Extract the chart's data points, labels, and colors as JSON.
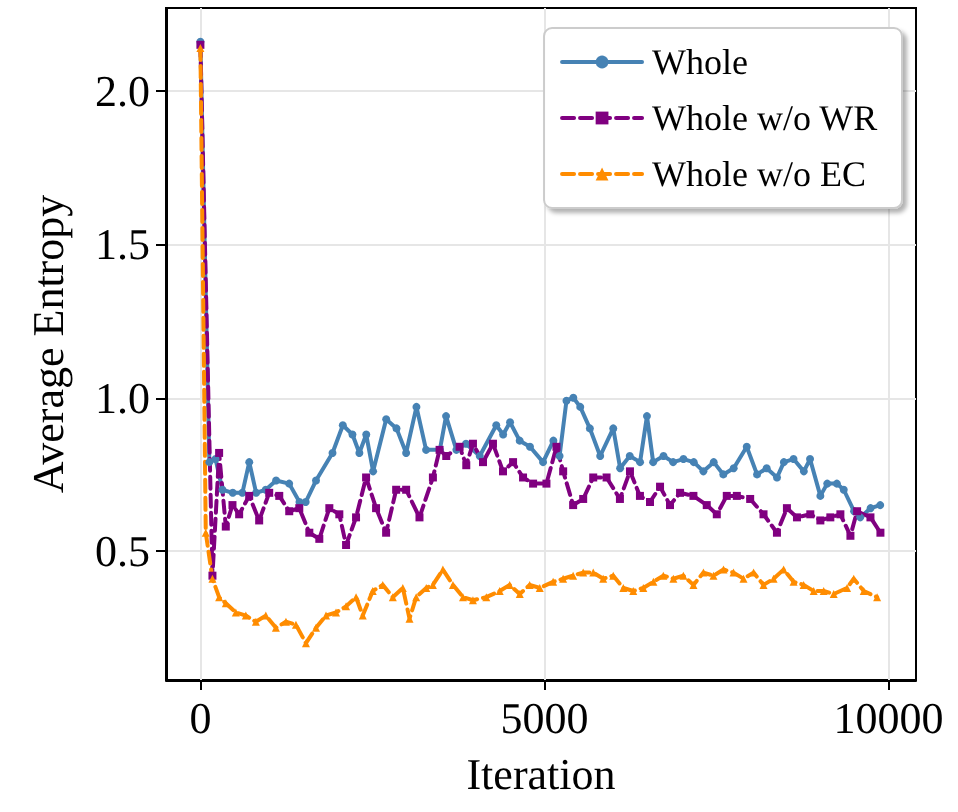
{
  "chart_data": {
    "type": "line",
    "xlabel": "Iteration",
    "ylabel": "Average Entropy",
    "xlim": [
      -500,
      10400
    ],
    "xticks": [
      0,
      5000,
      10000
    ],
    "ylim": [
      0.08,
      2.27
    ],
    "yticks": [
      {
        "value": 0.5,
        "label": "0.5"
      },
      {
        "value": 1.0,
        "label": "1.0"
      },
      {
        "value": 1.5,
        "label": "1.5"
      },
      {
        "value": 2.0,
        "label": "2.0"
      }
    ],
    "grid": true,
    "legend": "top right",
    "series": [
      {
        "name": "Whole",
        "color": "#4682b4",
        "marker": "circle",
        "line_style": "solid",
        "x": [
          0,
          130,
          220,
          320,
          470,
          610,
          710,
          810,
          950,
          1100,
          1290,
          1440,
          1530,
          1680,
          1920,
          2070,
          2210,
          2310,
          2410,
          2510,
          2700,
          2850,
          2990,
          3140,
          3280,
          3480,
          3570,
          3720,
          3860,
          4060,
          4300,
          4400,
          4500,
          4640,
          4790,
          4980,
          5130,
          5220,
          5320,
          5420,
          5520,
          5660,
          5810,
          6000,
          6100,
          6240,
          6390,
          6490,
          6580,
          6730,
          6870,
          7020,
          7170,
          7310,
          7460,
          7600,
          7750,
          7940,
          8090,
          8230,
          8380,
          8480,
          8620,
          8770,
          8860,
          9010,
          9110,
          9250,
          9350,
          9500,
          9590,
          9740,
          9880
        ],
        "values": [
          2.16,
          0.79,
          0.8,
          0.7,
          0.69,
          0.69,
          0.79,
          0.69,
          0.7,
          0.73,
          0.72,
          0.66,
          0.66,
          0.73,
          0.82,
          0.91,
          0.88,
          0.82,
          0.88,
          0.76,
          0.93,
          0.9,
          0.82,
          0.97,
          0.83,
          0.83,
          0.94,
          0.83,
          0.85,
          0.81,
          0.91,
          0.88,
          0.92,
          0.86,
          0.84,
          0.79,
          0.86,
          0.81,
          0.99,
          1.0,
          0.97,
          0.9,
          0.81,
          0.9,
          0.77,
          0.81,
          0.79,
          0.94,
          0.79,
          0.81,
          0.79,
          0.8,
          0.79,
          0.76,
          0.79,
          0.75,
          0.77,
          0.84,
          0.75,
          0.77,
          0.74,
          0.79,
          0.8,
          0.76,
          0.8,
          0.68,
          0.72,
          0.72,
          0.7,
          0.63,
          0.61,
          0.64,
          0.65
        ]
      },
      {
        "name": "Whole w/o WR",
        "color": "#800080",
        "marker": "square",
        "line_style": "dashed",
        "x": [
          0,
          175,
          272,
          369,
          466,
          563,
          709,
          854,
          1000,
          1146,
          1291,
          1437,
          1583,
          1728,
          1874,
          2019,
          2117,
          2262,
          2408,
          2553,
          2699,
          2845,
          2990,
          3184,
          3379,
          3476,
          3573,
          3767,
          3864,
          3961,
          4107,
          4252,
          4398,
          4544,
          4689,
          4835,
          5029,
          5175,
          5272,
          5417,
          5563,
          5709,
          5903,
          6097,
          6243,
          6388,
          6534,
          6680,
          6825,
          6971,
          7165,
          7359,
          7505,
          7650,
          7796,
          7990,
          8184,
          8379,
          8524,
          8670,
          8864,
          9010,
          9155,
          9301,
          9447,
          9544,
          9738,
          9883
        ],
        "values": [
          2.15,
          0.42,
          0.82,
          0.58,
          0.65,
          0.62,
          0.68,
          0.6,
          0.69,
          0.68,
          0.63,
          0.64,
          0.56,
          0.54,
          0.64,
          0.62,
          0.52,
          0.61,
          0.74,
          0.64,
          0.56,
          0.7,
          0.7,
          0.61,
          0.74,
          0.83,
          0.81,
          0.84,
          0.78,
          0.85,
          0.79,
          0.85,
          0.76,
          0.79,
          0.74,
          0.72,
          0.72,
          0.84,
          0.76,
          0.65,
          0.67,
          0.74,
          0.74,
          0.67,
          0.76,
          0.68,
          0.66,
          0.71,
          0.65,
          0.69,
          0.68,
          0.65,
          0.62,
          0.68,
          0.68,
          0.67,
          0.62,
          0.56,
          0.64,
          0.61,
          0.62,
          0.6,
          0.61,
          0.62,
          0.55,
          0.63,
          0.61,
          0.56
        ]
      },
      {
        "name": "Whole w/o EC",
        "color": "#ff8c00",
        "marker": "triangle",
        "line_style": "dashed",
        "x": [
          0,
          78,
          175,
          272,
          369,
          515,
          660,
          806,
          951,
          1097,
          1243,
          1388,
          1534,
          1680,
          1825,
          1971,
          2117,
          2262,
          2359,
          2505,
          2650,
          2796,
          2942,
          3039,
          3136,
          3282,
          3379,
          3524,
          3670,
          3816,
          3961,
          4155,
          4350,
          4495,
          4641,
          4786,
          4932,
          5126,
          5272,
          5417,
          5563,
          5709,
          5854,
          6000,
          6146,
          6291,
          6437,
          6583,
          6728,
          6874,
          7019,
          7165,
          7311,
          7456,
          7602,
          7748,
          7893,
          8039,
          8184,
          8330,
          8476,
          8621,
          8767,
          8913,
          9058,
          9204,
          9398,
          9495,
          9641,
          9835
        ],
        "values": [
          2.14,
          0.56,
          0.41,
          0.35,
          0.33,
          0.3,
          0.29,
          0.27,
          0.29,
          0.25,
          0.27,
          0.26,
          0.2,
          0.25,
          0.29,
          0.3,
          0.32,
          0.35,
          0.29,
          0.37,
          0.39,
          0.35,
          0.38,
          0.28,
          0.35,
          0.38,
          0.39,
          0.44,
          0.39,
          0.35,
          0.34,
          0.35,
          0.37,
          0.39,
          0.36,
          0.39,
          0.38,
          0.4,
          0.41,
          0.42,
          0.43,
          0.43,
          0.41,
          0.42,
          0.38,
          0.37,
          0.38,
          0.4,
          0.42,
          0.41,
          0.42,
          0.39,
          0.43,
          0.42,
          0.44,
          0.43,
          0.41,
          0.43,
          0.39,
          0.41,
          0.44,
          0.4,
          0.39,
          0.37,
          0.37,
          0.36,
          0.38,
          0.41,
          0.37,
          0.35
        ]
      }
    ]
  }
}
